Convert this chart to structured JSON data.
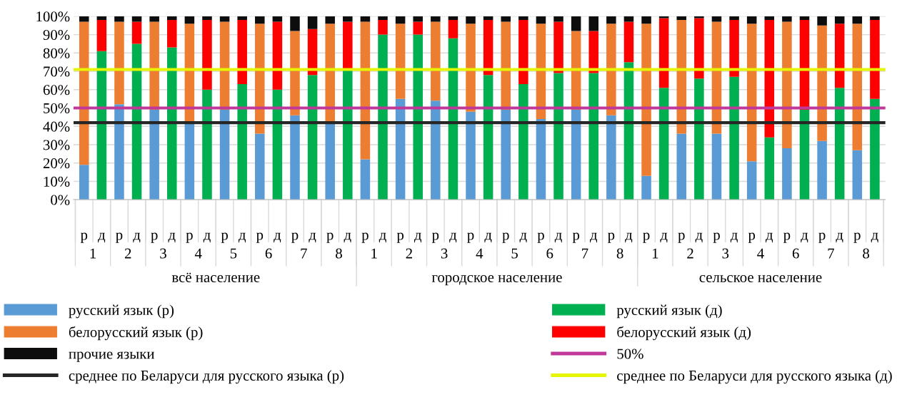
{
  "chart_data": {
    "type": "bar",
    "stacked": true,
    "categories": [
      "р",
      "д",
      "р",
      "д",
      "р",
      "д",
      "р",
      "д",
      "р",
      "д",
      "р",
      "д",
      "р",
      "д",
      "р",
      "д",
      "р",
      "д",
      "р",
      "д",
      "р",
      "д",
      "р",
      "д",
      "р",
      "д",
      "р",
      "д",
      "р",
      "д",
      "р",
      "д",
      "р",
      "д",
      "р",
      "д",
      "р",
      "д",
      "р",
      "д",
      "р",
      "д",
      "р",
      "д",
      "р",
      "д"
    ],
    "series": [
      {
        "name": "русский язык (р)",
        "color": "#5b9bd5",
        "values": [
          19,
          null,
          52,
          null,
          49,
          null,
          42,
          null,
          49,
          null,
          36,
          null,
          46,
          null,
          42,
          null,
          22,
          null,
          55,
          null,
          54,
          null,
          48,
          null,
          49,
          null,
          44,
          null,
          49,
          null,
          46,
          null,
          13,
          null,
          36,
          null,
          36,
          null,
          21,
          null,
          28,
          null,
          32,
          null,
          27,
          null
        ]
      },
      {
        "name": "русский язык (д)",
        "color": "#00b050",
        "values": [
          null,
          81,
          null,
          85,
          null,
          83,
          null,
          60,
          null,
          63,
          null,
          60,
          null,
          68,
          null,
          71,
          null,
          90,
          null,
          90,
          null,
          88,
          null,
          68,
          null,
          63,
          null,
          69,
          null,
          69,
          null,
          75,
          null,
          61,
          null,
          66,
          null,
          67,
          null,
          34,
          null,
          49,
          null,
          61,
          null,
          55
        ]
      },
      {
        "name": "белорусский язык (р)",
        "color": "#ed7d31",
        "values": [
          78,
          null,
          45,
          null,
          48,
          null,
          54,
          null,
          48,
          null,
          60,
          null,
          46,
          null,
          54,
          null,
          75,
          null,
          41,
          null,
          43,
          null,
          48,
          null,
          48,
          null,
          52,
          null,
          43,
          null,
          50,
          null,
          83,
          null,
          62,
          null,
          61,
          null,
          75,
          null,
          69,
          null,
          63,
          null,
          69,
          null
        ]
      },
      {
        "name": "белорусский язык (д)",
        "color": "#ff0000",
        "values": [
          null,
          17,
          null,
          12,
          null,
          15,
          null,
          38,
          null,
          35,
          null,
          37,
          null,
          25,
          null,
          26,
          null,
          8,
          null,
          7,
          null,
          10,
          null,
          30,
          null,
          35,
          null,
          28,
          null,
          23,
          null,
          22,
          null,
          38,
          null,
          33,
          null,
          31,
          null,
          64,
          null,
          49,
          null,
          35,
          null,
          43
        ]
      },
      {
        "name": "прочие языки",
        "color": "#0d0d0d",
        "values": [
          3,
          2,
          3,
          3,
          3,
          2,
          4,
          2,
          3,
          2,
          4,
          3,
          8,
          7,
          4,
          3,
          3,
          2,
          4,
          3,
          3,
          2,
          4,
          2,
          3,
          2,
          4,
          3,
          8,
          8,
          4,
          3,
          4,
          1,
          2,
          1,
          3,
          2,
          4,
          2,
          3,
          2,
          5,
          4,
          4,
          2
        ]
      }
    ],
    "ref_lines": [
      {
        "axis": "y",
        "value": 50,
        "label": "50%",
        "color": "#c0399a"
      },
      {
        "axis": "y",
        "value": 42,
        "label": "среднее по Беларуси для русского языка (р)",
        "color": "#262626"
      },
      {
        "axis": "y",
        "value": 71,
        "label": "среднее по Беларуси для русского языка (д)",
        "color": "#e6f500"
      }
    ],
    "annotations": [
      "1",
      "2",
      "3",
      "4",
      "5",
      "6",
      "7",
      "8",
      "1",
      "2",
      "3",
      "4",
      "5",
      "6",
      "7",
      "8",
      "1",
      "2",
      "3",
      "4",
      "6",
      "7",
      "8",
      "всё население",
      "городское население",
      "сельское население"
    ],
    "ylim": [
      0,
      100
    ],
    "yticks": [
      {
        "value": 0,
        "label": "0%"
      },
      {
        "value": 10,
        "label": "10%"
      },
      {
        "value": 20,
        "label": "20%"
      },
      {
        "value": 30,
        "label": "30%"
      },
      {
        "value": 40,
        "label": "40%"
      },
      {
        "value": 50,
        "label": "50%"
      },
      {
        "value": 60,
        "label": "60%"
      },
      {
        "value": 70,
        "label": "70%"
      },
      {
        "value": 80,
        "label": "80%"
      },
      {
        "value": 90,
        "label": "90%"
      },
      {
        "value": 100,
        "label": "100%"
      }
    ],
    "grid": "y",
    "legend": "bottom"
  }
}
